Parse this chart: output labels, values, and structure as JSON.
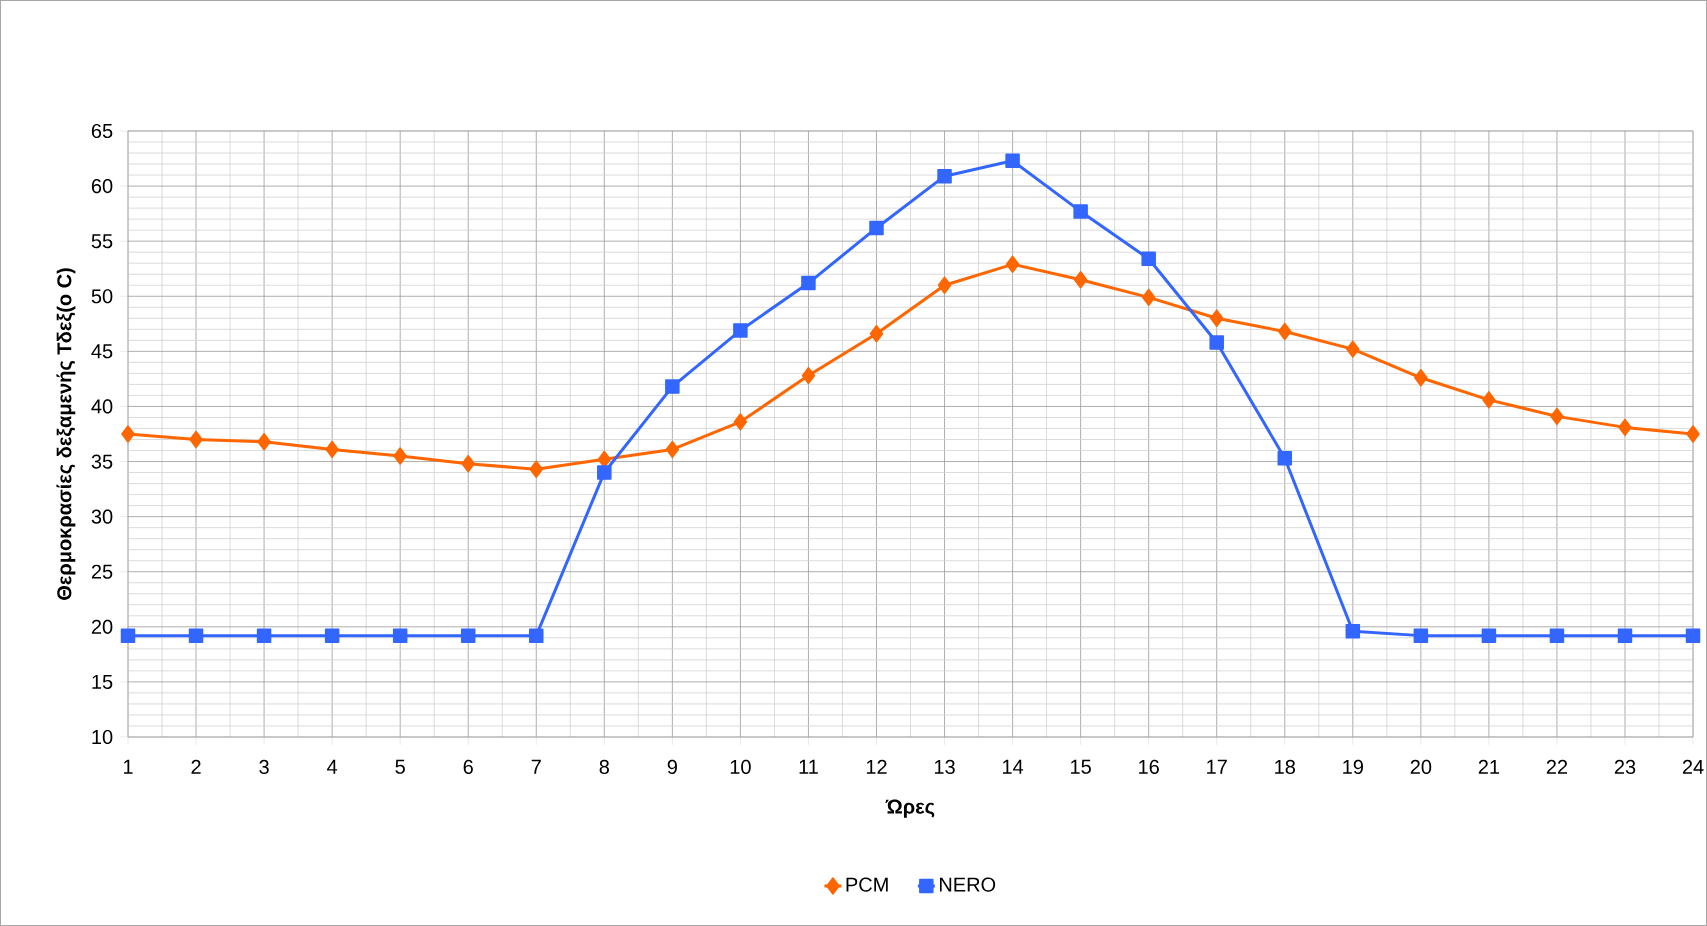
{
  "chart_data": {
    "type": "line",
    "xlabel": "Ώρες",
    "ylabel": "Θερμοκρασίες δεξαμενής Τδεξ(o C)",
    "x": [
      1,
      2,
      3,
      4,
      5,
      6,
      7,
      8,
      9,
      10,
      11,
      12,
      13,
      14,
      15,
      16,
      17,
      18,
      19,
      20,
      21,
      22,
      23,
      24
    ],
    "xlim": [
      1,
      24
    ],
    "xticks": [
      1,
      2,
      3,
      4,
      5,
      6,
      7,
      8,
      9,
      10,
      11,
      12,
      13,
      14,
      15,
      16,
      17,
      18,
      19,
      20,
      21,
      22,
      23,
      24
    ],
    "ylim": [
      10,
      65
    ],
    "yticks": [
      10,
      15,
      20,
      25,
      30,
      35,
      40,
      45,
      50,
      55,
      60,
      65
    ],
    "grid": true,
    "legend": "bottom",
    "line_style": "solid",
    "series": [
      {
        "name": "PCM",
        "color": "#ff6600",
        "marker": "diamond",
        "values": [
          37.5,
          37.0,
          36.8,
          36.1,
          35.5,
          34.8,
          34.3,
          35.2,
          36.1,
          38.6,
          42.8,
          46.6,
          51.0,
          52.9,
          51.5,
          49.9,
          48.0,
          46.8,
          45.2,
          42.6,
          40.6,
          39.1,
          38.1,
          37.5
        ]
      },
      {
        "name": "NERO",
        "color": "#3366ff",
        "marker": "square",
        "values": [
          19.2,
          19.2,
          19.2,
          19.2,
          19.2,
          19.2,
          19.2,
          34.0,
          41.8,
          46.9,
          51.2,
          56.2,
          60.9,
          62.3,
          57.7,
          53.4,
          45.8,
          35.3,
          19.6,
          19.2,
          19.2,
          19.2,
          19.2,
          19.2
        ]
      }
    ]
  }
}
